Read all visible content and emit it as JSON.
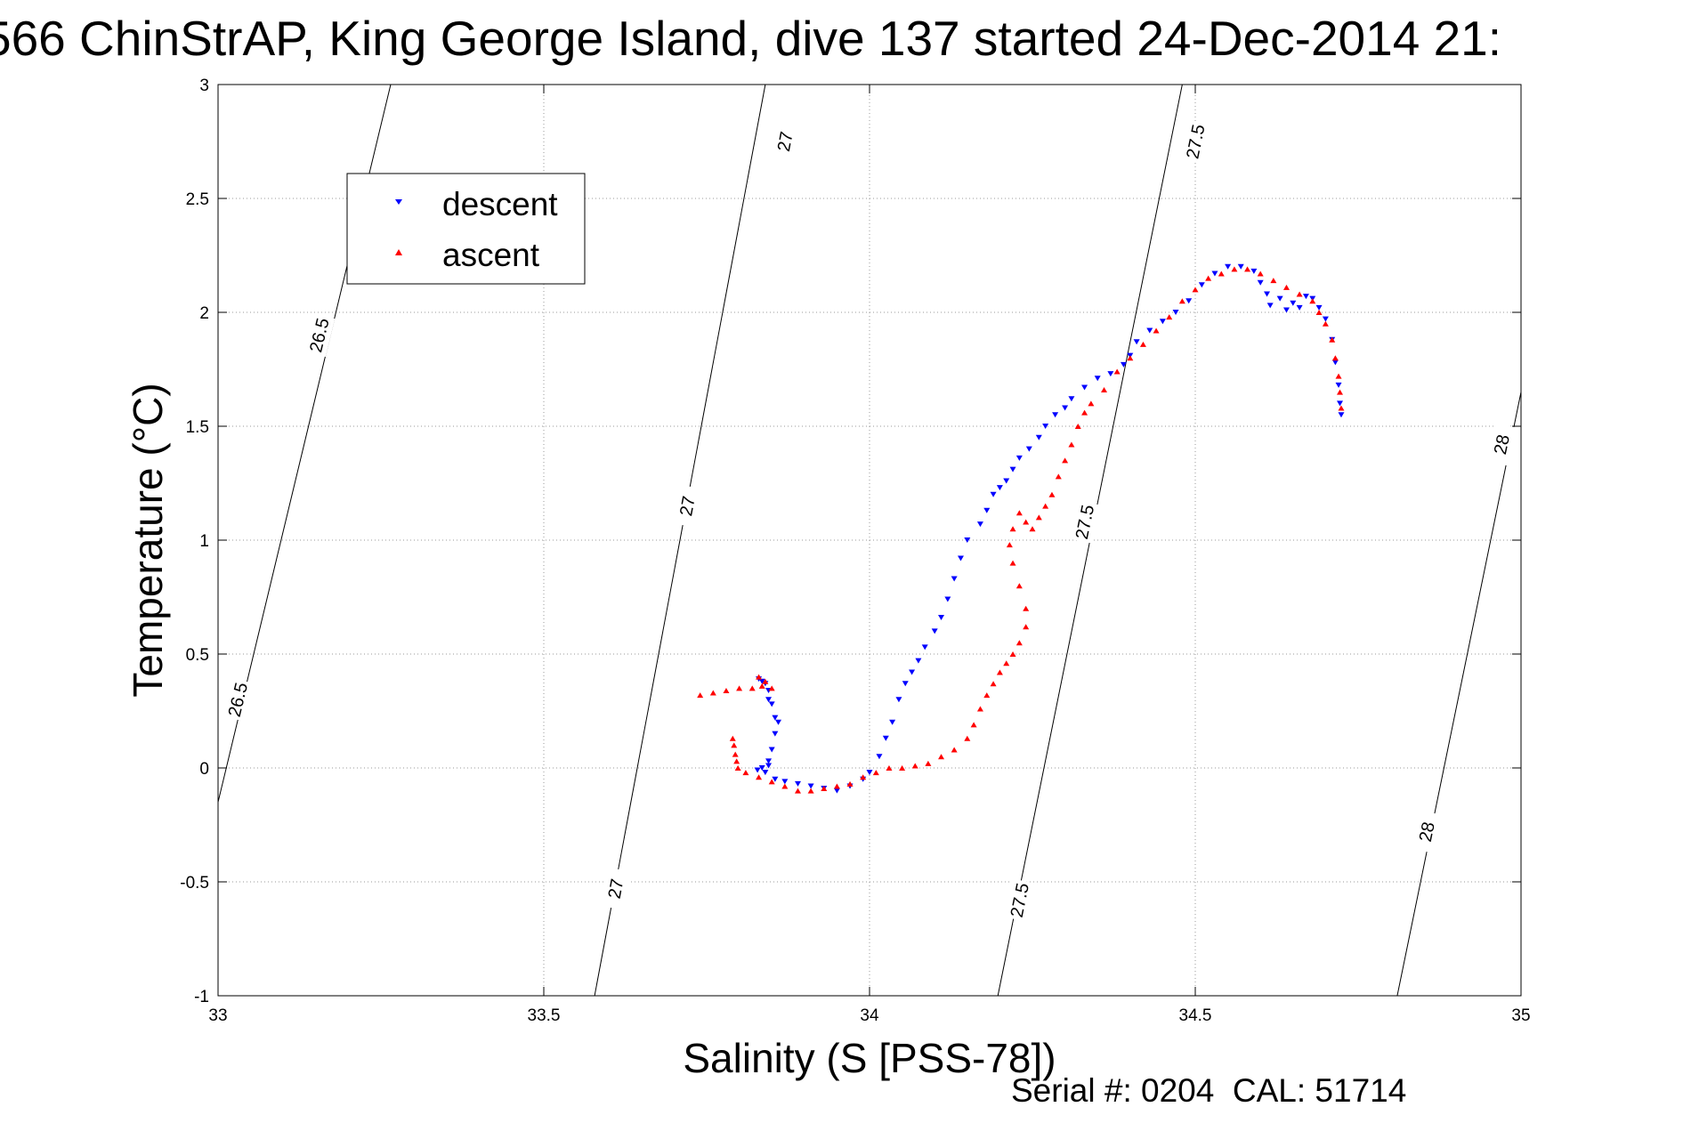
{
  "page": {
    "footer": "Serial #: 0204  CAL: 51714"
  },
  "chart_data": {
    "type": "scatter",
    "title": "566 ChinStrAP, King George Island, dive 137 started 24-Dec-2014 21:",
    "xlabel": "Salinity (S [PSS-78])",
    "ylabel": "Temperature (°C)",
    "xlim": [
      33,
      35
    ],
    "ylim": [
      -1,
      3
    ],
    "xticks": [
      33,
      33.5,
      34,
      34.5,
      35
    ],
    "yticks": [
      -1,
      -0.5,
      0,
      0.5,
      1,
      1.5,
      2,
      2.5,
      3
    ],
    "xtick_labels": [
      "33",
      "33.5",
      "34",
      "34.5",
      "35"
    ],
    "ytick_labels": [
      "-1",
      "-0.5",
      "0",
      "0.5",
      "1",
      "1.5",
      "2",
      "2.5",
      "3"
    ],
    "grid": true,
    "legend_position": "top-left",
    "series": [
      {
        "name": "descent",
        "color": "#0000ff",
        "marker": "triangle-down",
        "points": [
          [
            33.83,
            0.39
          ],
          [
            33.835,
            0.38
          ],
          [
            33.84,
            0.37
          ],
          [
            33.845,
            0.34
          ],
          [
            33.845,
            0.3
          ],
          [
            33.85,
            0.28
          ],
          [
            33.855,
            0.22
          ],
          [
            33.86,
            0.2
          ],
          [
            33.855,
            0.15
          ],
          [
            33.85,
            0.08
          ],
          [
            33.845,
            0.03
          ],
          [
            33.845,
            0.01
          ],
          [
            33.835,
            0.0
          ],
          [
            33.828,
            -0.01
          ],
          [
            33.84,
            -0.02
          ],
          [
            33.855,
            -0.05
          ],
          [
            33.87,
            -0.06
          ],
          [
            33.89,
            -0.07
          ],
          [
            33.91,
            -0.08
          ],
          [
            33.93,
            -0.09
          ],
          [
            33.95,
            -0.1
          ],
          [
            33.97,
            -0.08
          ],
          [
            33.99,
            -0.05
          ],
          [
            34.0,
            -0.02
          ],
          [
            34.015,
            0.05
          ],
          [
            34.025,
            0.13
          ],
          [
            34.035,
            0.2
          ],
          [
            34.045,
            0.3
          ],
          [
            34.055,
            0.37
          ],
          [
            34.065,
            0.42
          ],
          [
            34.075,
            0.47
          ],
          [
            34.085,
            0.53
          ],
          [
            34.1,
            0.6
          ],
          [
            34.11,
            0.66
          ],
          [
            34.12,
            0.74
          ],
          [
            34.13,
            0.83
          ],
          [
            34.14,
            0.92
          ],
          [
            34.15,
            1.0
          ],
          [
            34.17,
            1.07
          ],
          [
            34.18,
            1.13
          ],
          [
            34.19,
            1.2
          ],
          [
            34.2,
            1.23
          ],
          [
            34.21,
            1.26
          ],
          [
            34.22,
            1.31
          ],
          [
            34.23,
            1.36
          ],
          [
            34.245,
            1.4
          ],
          [
            34.26,
            1.45
          ],
          [
            34.27,
            1.5
          ],
          [
            34.285,
            1.55
          ],
          [
            34.3,
            1.58
          ],
          [
            34.31,
            1.62
          ],
          [
            34.33,
            1.67
          ],
          [
            34.35,
            1.71
          ],
          [
            34.37,
            1.73
          ],
          [
            34.39,
            1.77
          ],
          [
            34.4,
            1.81
          ],
          [
            34.41,
            1.87
          ],
          [
            34.43,
            1.92
          ],
          [
            34.45,
            1.96
          ],
          [
            34.47,
            2.0
          ],
          [
            34.49,
            2.05
          ],
          [
            34.51,
            2.12
          ],
          [
            34.53,
            2.17
          ],
          [
            34.55,
            2.2
          ],
          [
            34.57,
            2.2
          ],
          [
            34.59,
            2.18
          ],
          [
            34.6,
            2.13
          ],
          [
            34.61,
            2.08
          ],
          [
            34.615,
            2.03
          ],
          [
            34.63,
            2.06
          ],
          [
            34.64,
            2.01
          ],
          [
            34.65,
            2.04
          ],
          [
            34.66,
            2.02
          ],
          [
            34.67,
            2.07
          ],
          [
            34.68,
            2.06
          ],
          [
            34.69,
            2.02
          ],
          [
            34.7,
            1.97
          ],
          [
            34.71,
            1.88
          ],
          [
            34.715,
            1.78
          ],
          [
            34.72,
            1.68
          ],
          [
            34.722,
            1.6
          ],
          [
            34.724,
            1.55
          ]
        ]
      },
      {
        "name": "ascent",
        "color": "#ff0000",
        "marker": "triangle-up",
        "points": [
          [
            33.74,
            0.32
          ],
          [
            33.76,
            0.33
          ],
          [
            33.78,
            0.34
          ],
          [
            33.8,
            0.35
          ],
          [
            33.82,
            0.35
          ],
          [
            33.835,
            0.36
          ],
          [
            33.83,
            0.4
          ],
          [
            33.84,
            0.38
          ],
          [
            33.85,
            0.35
          ],
          [
            33.79,
            0.13
          ],
          [
            33.792,
            0.1
          ],
          [
            33.794,
            0.06
          ],
          [
            33.796,
            0.03
          ],
          [
            33.798,
            0.0
          ],
          [
            33.81,
            -0.02
          ],
          [
            33.83,
            -0.04
          ],
          [
            33.85,
            -0.06
          ],
          [
            33.87,
            -0.08
          ],
          [
            33.89,
            -0.1
          ],
          [
            33.91,
            -0.1
          ],
          [
            33.93,
            -0.09
          ],
          [
            33.95,
            -0.08
          ],
          [
            33.97,
            -0.07
          ],
          [
            33.99,
            -0.04
          ],
          [
            34.01,
            -0.02
          ],
          [
            34.03,
            0.0
          ],
          [
            34.05,
            0.0
          ],
          [
            34.07,
            0.01
          ],
          [
            34.09,
            0.02
          ],
          [
            34.11,
            0.05
          ],
          [
            34.13,
            0.08
          ],
          [
            34.15,
            0.13
          ],
          [
            34.16,
            0.19
          ],
          [
            34.17,
            0.26
          ],
          [
            34.18,
            0.32
          ],
          [
            34.19,
            0.37
          ],
          [
            34.2,
            0.42
          ],
          [
            34.21,
            0.46
          ],
          [
            34.22,
            0.5
          ],
          [
            34.23,
            0.55
          ],
          [
            34.24,
            0.62
          ],
          [
            34.24,
            0.7
          ],
          [
            34.23,
            0.8
          ],
          [
            34.22,
            0.9
          ],
          [
            34.215,
            0.98
          ],
          [
            34.22,
            1.05
          ],
          [
            34.23,
            1.12
          ],
          [
            34.24,
            1.08
          ],
          [
            34.25,
            1.05
          ],
          [
            34.26,
            1.1
          ],
          [
            34.27,
            1.15
          ],
          [
            34.28,
            1.2
          ],
          [
            34.29,
            1.28
          ],
          [
            34.3,
            1.35
          ],
          [
            34.31,
            1.42
          ],
          [
            34.32,
            1.5
          ],
          [
            34.33,
            1.56
          ],
          [
            34.34,
            1.6
          ],
          [
            34.36,
            1.66
          ],
          [
            34.38,
            1.74
          ],
          [
            34.4,
            1.8
          ],
          [
            34.42,
            1.86
          ],
          [
            34.44,
            1.92
          ],
          [
            34.46,
            1.98
          ],
          [
            34.48,
            2.05
          ],
          [
            34.5,
            2.1
          ],
          [
            34.52,
            2.15
          ],
          [
            34.54,
            2.17
          ],
          [
            34.56,
            2.19
          ],
          [
            34.58,
            2.19
          ],
          [
            34.6,
            2.17
          ],
          [
            34.62,
            2.14
          ],
          [
            34.64,
            2.11
          ],
          [
            34.66,
            2.08
          ],
          [
            34.68,
            2.05
          ],
          [
            34.69,
            2.0
          ],
          [
            34.7,
            1.95
          ],
          [
            34.71,
            1.88
          ],
          [
            34.715,
            1.8
          ],
          [
            34.72,
            1.72
          ],
          [
            34.722,
            1.65
          ],
          [
            34.724,
            1.58
          ]
        ]
      }
    ],
    "density_contours": [
      {
        "level": 26.5,
        "endpoints": [
          [
            33.0,
            -0.15
          ],
          [
            33.265,
            3.0
          ]
        ],
        "labels": [
          "26.5",
          "26.5"
        ],
        "label_positions": [
          [
            33.03,
            0.3
          ],
          [
            33.155,
            1.9
          ]
        ]
      },
      {
        "level": 27,
        "endpoints": [
          [
            33.578,
            -1.0
          ],
          [
            33.84,
            3.0
          ]
        ],
        "labels": [
          "27",
          "27",
          "27"
        ],
        "label_positions": [
          [
            33.61,
            -0.53
          ],
          [
            33.72,
            1.15
          ],
          [
            33.87,
            2.75
          ]
        ]
      },
      {
        "level": 27.5,
        "endpoints": [
          [
            34.197,
            -1.0
          ],
          [
            34.48,
            3.0
          ]
        ],
        "labels": [
          "27.5",
          "27.5",
          "27.5"
        ],
        "label_positions": [
          [
            34.23,
            -0.58
          ],
          [
            34.33,
            1.08
          ],
          [
            34.5,
            2.75
          ]
        ]
      },
      {
        "level": 28,
        "endpoints": [
          [
            34.81,
            -1.0
          ],
          [
            35.0,
            1.65
          ]
        ],
        "labels": [
          "28",
          "28"
        ],
        "label_positions": [
          [
            34.855,
            -0.28
          ],
          [
            34.97,
            1.42
          ]
        ]
      }
    ]
  }
}
